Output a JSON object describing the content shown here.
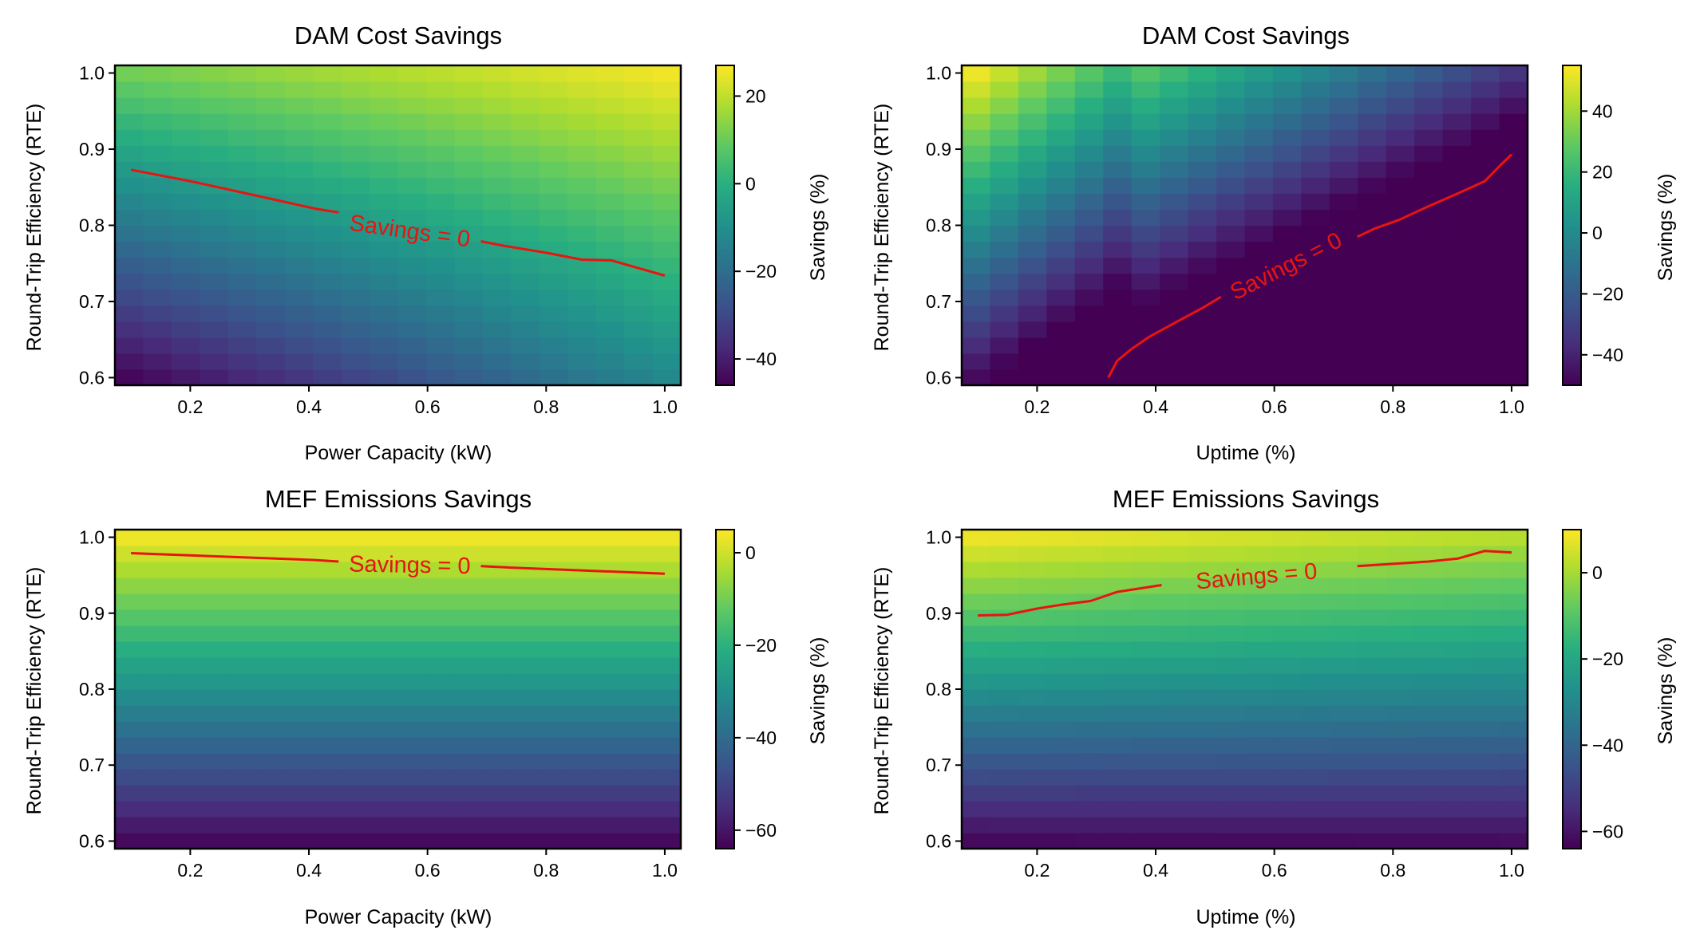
{
  "chart_data": [
    {
      "type": "heatmap",
      "title": "DAM Cost Savings",
      "xlabel": "Power Capacity (kW)",
      "ylabel": "Round-Trip Efficiency (RTE)",
      "colorbar_label": "Savings (%)",
      "colormap": "viridis",
      "xlim": [
        0.073,
        1.027
      ],
      "ylim": [
        0.59,
        1.01
      ],
      "x_ticks": [
        0.2,
        0.4,
        0.6,
        0.8,
        1.0
      ],
      "y_ticks": [
        0.6,
        0.7,
        0.8,
        0.9,
        1.0
      ],
      "x_tick_labels": [
        "0.2",
        "0.4",
        "0.6",
        "0.8",
        "1.0"
      ],
      "y_tick_labels": [
        "0.6",
        "0.7",
        "0.8",
        "0.9",
        "1.0"
      ],
      "grid_cols": 20,
      "grid_rows": 20,
      "surface": {
        "form": "linear",
        "corner_values": {
          "x0_y0": -47,
          "x1_y0": -12,
          "x0_y1": 12,
          "x1_y1": 27
        }
      },
      "color_range": [
        -46,
        27
      ],
      "colorbar_ticks": [
        20,
        0,
        -20,
        -40
      ],
      "colorbar_tick_labels": [
        "20",
        "0",
        "−20",
        "−40"
      ],
      "contour": {
        "color": "#e8140f",
        "label": "Savings = 0",
        "label_at": [
          0.57,
          0.792
        ],
        "label_angle": 8,
        "points": [
          [
            0.1,
            0.873
          ],
          [
            0.2,
            0.858
          ],
          [
            0.3,
            0.841
          ],
          [
            0.41,
            0.822
          ],
          [
            0.45,
            0.817
          ],
          [
            0.69,
            0.779
          ],
          [
            0.73,
            0.773
          ],
          [
            0.8,
            0.764
          ],
          [
            0.86,
            0.755
          ],
          [
            0.91,
            0.754
          ],
          [
            1.0,
            0.734
          ]
        ]
      }
    },
    {
      "type": "heatmap",
      "title": "DAM Cost Savings",
      "xlabel": "Uptime (%)",
      "ylabel": "Round-Trip Efficiency (RTE)",
      "colorbar_label": "Savings (%)",
      "colormap": "viridis",
      "xlim": [
        0.073,
        1.027
      ],
      "ylim": [
        0.59,
        1.01
      ],
      "x_ticks": [
        0.2,
        0.4,
        0.6,
        0.8,
        1.0
      ],
      "y_ticks": [
        0.6,
        0.7,
        0.8,
        0.9,
        1.0
      ],
      "x_tick_labels": [
        "0.2",
        "0.4",
        "0.6",
        "0.8",
        "1.0"
      ],
      "y_tick_labels": [
        "0.6",
        "0.7",
        "0.8",
        "0.9",
        "1.0"
      ],
      "grid_cols": 20,
      "grid_rows": 20,
      "surface": {
        "form": "uptime",
        "start": 55,
        "step": -6.5,
        "steps_before_floor": 5,
        "floor": 28,
        "slope": -4.6,
        "rte_gain": 105
      },
      "color_range": [
        -50,
        55
      ],
      "colorbar_ticks": [
        40,
        20,
        0,
        -20,
        -40
      ],
      "colorbar_tick_labels": [
        "40",
        "20",
        "0",
        "−20",
        "−40"
      ],
      "contour": {
        "color": "#e8140f",
        "label": "Savings = 0",
        "label_at": [
          0.62,
          0.746
        ],
        "label_angle": -27,
        "points": [
          [
            0.32,
            0.6
          ],
          [
            0.335,
            0.622
          ],
          [
            0.36,
            0.638
          ],
          [
            0.39,
            0.654
          ],
          [
            0.43,
            0.671
          ],
          [
            0.48,
            0.692
          ],
          [
            0.51,
            0.706
          ],
          [
            0.74,
            0.785
          ],
          [
            0.77,
            0.796
          ],
          [
            0.81,
            0.807
          ],
          [
            0.86,
            0.825
          ],
          [
            0.91,
            0.842
          ],
          [
            0.955,
            0.858
          ],
          [
            0.98,
            0.878
          ],
          [
            1.0,
            0.893
          ]
        ]
      }
    },
    {
      "type": "heatmap",
      "title": "MEF Emissions Savings",
      "xlabel": "Power Capacity (kW)",
      "ylabel": "Round-Trip Efficiency (RTE)",
      "colorbar_label": "Savings (%)",
      "colormap": "viridis",
      "xlim": [
        0.073,
        1.027
      ],
      "ylim": [
        0.59,
        1.01
      ],
      "x_ticks": [
        0.2,
        0.4,
        0.6,
        0.8,
        1.0
      ],
      "y_ticks": [
        0.6,
        0.7,
        0.8,
        0.9,
        1.0
      ],
      "x_tick_labels": [
        "0.2",
        "0.4",
        "0.6",
        "0.8",
        "1.0"
      ],
      "y_tick_labels": [
        "0.6",
        "0.7",
        "0.8",
        "0.9",
        "1.0"
      ],
      "grid_cols": 20,
      "grid_rows": 20,
      "surface": {
        "form": "rte_only",
        "base": -64,
        "gain": 69
      },
      "color_range": [
        -64,
        5
      ],
      "colorbar_ticks": [
        0,
        -20,
        -40,
        -60
      ],
      "colorbar_tick_labels": [
        "0",
        "−20",
        "−40",
        "−60"
      ],
      "contour": {
        "color": "#e8140f",
        "label": "Savings = 0",
        "label_at": [
          0.57,
          0.963
        ],
        "label_angle": 1,
        "points": [
          [
            0.1,
            0.979
          ],
          [
            0.41,
            0.97
          ],
          [
            0.45,
            0.968
          ],
          [
            0.69,
            0.962
          ],
          [
            0.74,
            0.96
          ],
          [
            1.0,
            0.952
          ]
        ]
      }
    },
    {
      "type": "heatmap",
      "title": "MEF Emissions Savings",
      "xlabel": "Uptime (%)",
      "ylabel": "Round-Trip Efficiency (RTE)",
      "colorbar_label": "Savings (%)",
      "colormap": "viridis",
      "xlim": [
        0.073,
        1.027
      ],
      "ylim": [
        0.59,
        1.01
      ],
      "x_ticks": [
        0.2,
        0.4,
        0.6,
        0.8,
        1.0
      ],
      "y_ticks": [
        0.6,
        0.7,
        0.8,
        0.9,
        1.0
      ],
      "x_tick_labels": [
        "0.2",
        "0.4",
        "0.6",
        "0.8",
        "1.0"
      ],
      "y_tick_labels": [
        "0.6",
        "0.7",
        "0.8",
        "0.9",
        "1.0"
      ],
      "grid_cols": 20,
      "grid_rows": 20,
      "surface": {
        "form": "linear",
        "corner_values": {
          "x0_y0": -64,
          "x1_y0": -63,
          "x0_y1": 10,
          "x1_y1": 3
        }
      },
      "color_range": [
        -64,
        10
      ],
      "colorbar_ticks": [
        0,
        -20,
        -40,
        -60
      ],
      "colorbar_tick_labels": [
        "0",
        "−20",
        "−40",
        "−60"
      ],
      "contour": {
        "color": "#e8140f",
        "label": "Savings = 0",
        "label_at": [
          0.57,
          0.948
        ],
        "label_angle": -5,
        "points": [
          [
            0.1,
            0.897
          ],
          [
            0.15,
            0.898
          ],
          [
            0.2,
            0.906
          ],
          [
            0.24,
            0.911
          ],
          [
            0.29,
            0.916
          ],
          [
            0.335,
            0.928
          ],
          [
            0.41,
            0.937
          ],
          [
            0.74,
            0.962
          ],
          [
            0.8,
            0.965
          ],
          [
            0.86,
            0.968
          ],
          [
            0.91,
            0.972
          ],
          [
            0.955,
            0.982
          ],
          [
            1.0,
            0.98
          ]
        ]
      }
    }
  ]
}
